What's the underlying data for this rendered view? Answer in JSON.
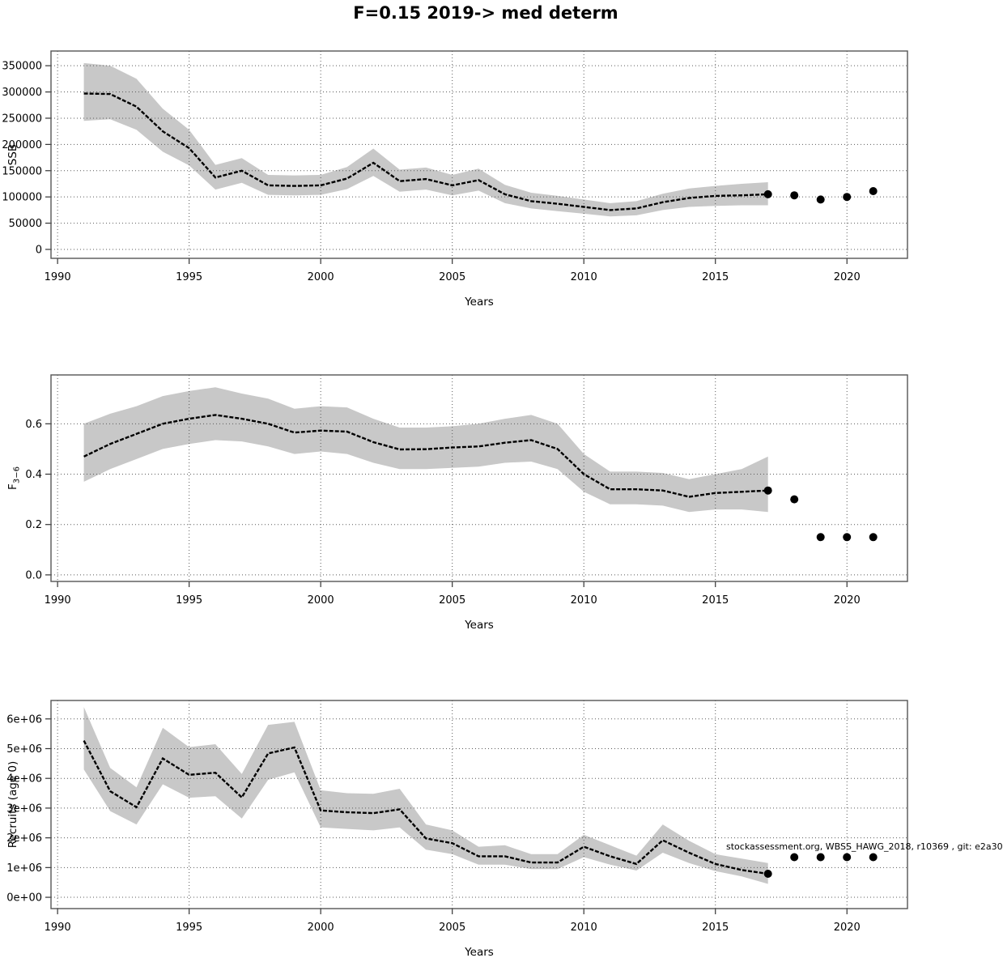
{
  "title": "F=0.15 2019-> med determ",
  "watermark": "stockassessment.org, WBSS_HAWG_2018, r10369 , git: e2a30",
  "colors": {
    "band": "#c8c8c8",
    "line": "#000000",
    "dot": "#000000",
    "grid": "#5a5a5a",
    "frame": "#555555"
  },
  "x_axis": {
    "label": "Years",
    "ticks": [
      1990,
      1995,
      2000,
      2005,
      2010,
      2015,
      2020
    ],
    "lim": [
      1989.75,
      2022.3
    ]
  },
  "chart_data": [
    {
      "type": "line",
      "name": "ssb",
      "ylabel": "SSB",
      "xlabel": "Years",
      "legend_position": "none",
      "grid": true,
      "x": [
        1991,
        1992,
        1993,
        1994,
        1995,
        1996,
        1997,
        1998,
        1999,
        2000,
        2001,
        2002,
        2003,
        2004,
        2005,
        2006,
        2007,
        2008,
        2009,
        2010,
        2011,
        2012,
        2013,
        2014,
        2015,
        2016,
        2017
      ],
      "values": [
        297000,
        296000,
        272000,
        225000,
        193000,
        137000,
        150000,
        122000,
        121000,
        122000,
        135000,
        165000,
        130000,
        134000,
        122000,
        132000,
        105000,
        92000,
        87000,
        81000,
        75000,
        78000,
        90000,
        98000,
        102000,
        103000,
        105000
      ],
      "ci_lower": [
        245000,
        248000,
        228000,
        186000,
        160000,
        114000,
        127000,
        104000,
        103000,
        104000,
        115000,
        140000,
        110000,
        114000,
        103000,
        112000,
        88000,
        78000,
        73000,
        68000,
        63000,
        65000,
        75000,
        81000,
        83000,
        84000,
        84000
      ],
      "ci_upper": [
        355000,
        350000,
        325000,
        268000,
        228000,
        161000,
        174000,
        142000,
        141000,
        142000,
        157000,
        192000,
        152000,
        156000,
        142000,
        154000,
        123000,
        108000,
        102000,
        95000,
        88000,
        92000,
        106000,
        116000,
        121000,
        125000,
        128000
      ],
      "forecast_points": {
        "x": [
          2017,
          2018,
          2019,
          2020,
          2021
        ],
        "values": [
          105000,
          103000,
          95000,
          100000,
          111000
        ]
      },
      "yticks": [
        0,
        50000,
        100000,
        150000,
        200000,
        250000,
        300000,
        350000
      ],
      "ytick_labels": [
        "0",
        "50000",
        "100000",
        "150000",
        "200000",
        "250000",
        "300000",
        "350000"
      ],
      "ylim": [
        -17000,
        378000
      ]
    },
    {
      "type": "line",
      "name": "fbar",
      "ylabel": {
        "main": "F",
        "sub": "3−6"
      },
      "xlabel": "Years",
      "legend_position": "none",
      "grid": true,
      "x": [
        1991,
        1992,
        1993,
        1994,
        1995,
        1996,
        1997,
        1998,
        1999,
        2000,
        2001,
        2002,
        2003,
        2004,
        2005,
        2006,
        2007,
        2008,
        2009,
        2010,
        2011,
        2012,
        2013,
        2014,
        2015,
        2016,
        2017
      ],
      "values": [
        0.47,
        0.52,
        0.56,
        0.6,
        0.62,
        0.635,
        0.62,
        0.6,
        0.565,
        0.573,
        0.569,
        0.527,
        0.498,
        0.499,
        0.506,
        0.51,
        0.525,
        0.535,
        0.5,
        0.4,
        0.34,
        0.34,
        0.335,
        0.31,
        0.325,
        0.33,
        0.335
      ],
      "ci_lower": [
        0.37,
        0.42,
        0.46,
        0.5,
        0.52,
        0.535,
        0.53,
        0.51,
        0.48,
        0.49,
        0.48,
        0.445,
        0.42,
        0.42,
        0.425,
        0.43,
        0.445,
        0.45,
        0.42,
        0.33,
        0.28,
        0.28,
        0.275,
        0.25,
        0.26,
        0.26,
        0.25
      ],
      "ci_upper": [
        0.6,
        0.64,
        0.67,
        0.71,
        0.73,
        0.745,
        0.72,
        0.7,
        0.66,
        0.67,
        0.665,
        0.62,
        0.585,
        0.585,
        0.59,
        0.6,
        0.62,
        0.635,
        0.6,
        0.48,
        0.41,
        0.41,
        0.405,
        0.38,
        0.4,
        0.42,
        0.47
      ],
      "forecast_points": {
        "x": [
          2017,
          2018,
          2019,
          2020,
          2021
        ],
        "values": [
          0.335,
          0.3,
          0.15,
          0.15,
          0.15
        ]
      },
      "yticks": [
        0,
        0.2,
        0.4,
        0.6
      ],
      "ytick_labels": [
        "0.0",
        "0.2",
        "0.4",
        "0.6"
      ],
      "ylim": [
        -0.026,
        0.794
      ]
    },
    {
      "type": "line",
      "name": "recruits",
      "ylabel": "Recruits (age 0)",
      "xlabel": "Years",
      "legend_position": "none",
      "grid": true,
      "x": [
        1991,
        1992,
        1993,
        1994,
        1995,
        1996,
        1997,
        1998,
        1999,
        2000,
        2001,
        2002,
        2003,
        2004,
        2005,
        2006,
        2007,
        2008,
        2009,
        2010,
        2011,
        2012,
        2013,
        2014,
        2015,
        2016,
        2017
      ],
      "values": [
        5270000,
        3570000,
        3030000,
        4670000,
        4120000,
        4190000,
        3360000,
        4840000,
        5040000,
        2920000,
        2860000,
        2830000,
        2960000,
        1980000,
        1820000,
        1380000,
        1380000,
        1170000,
        1170000,
        1700000,
        1380000,
        1120000,
        1920000,
        1500000,
        1120000,
        920000,
        790000
      ],
      "ci_lower": [
        4300000,
        2900000,
        2450000,
        3800000,
        3350000,
        3400000,
        2650000,
        3950000,
        4200000,
        2350000,
        2300000,
        2250000,
        2350000,
        1600000,
        1450000,
        1100000,
        1100000,
        950000,
        950000,
        1350000,
        1100000,
        900000,
        1500000,
        1150000,
        880000,
        700000,
        450000
      ],
      "ci_upper": [
        6400000,
        4350000,
        3700000,
        5700000,
        5050000,
        5150000,
        4150000,
        5800000,
        5900000,
        3600000,
        3500000,
        3480000,
        3650000,
        2450000,
        2250000,
        1700000,
        1750000,
        1450000,
        1450000,
        2100000,
        1750000,
        1400000,
        2450000,
        1900000,
        1450000,
        1300000,
        1150000
      ],
      "forecast_points": {
        "x": [
          2017,
          2018,
          2019,
          2020,
          2021
        ],
        "values": [
          790000,
          1350000,
          1350000,
          1350000,
          1350000
        ]
      },
      "yticks": [
        0,
        1000000,
        2000000,
        3000000,
        4000000,
        5000000,
        6000000
      ],
      "ytick_labels": [
        "0e+00",
        "1e+06",
        "2e+06",
        "3e+06",
        "4e+06",
        "5e+06",
        "6e+06"
      ],
      "ylim": [
        -380000,
        6620000
      ]
    }
  ]
}
